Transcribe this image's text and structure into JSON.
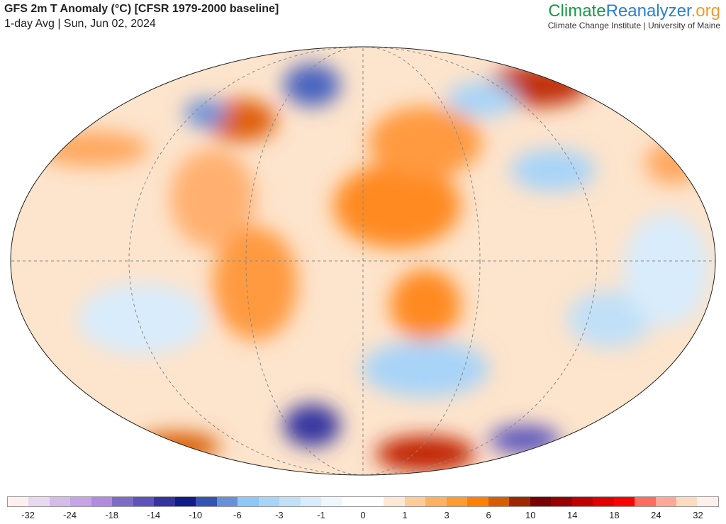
{
  "header": {
    "title": "GFS 2m T Anomaly (°C) [CFSR 1979-2000 baseline]",
    "subtitle": "1-day Avg | Sun, Jun 02, 2024"
  },
  "brand": {
    "part1": "Climate",
    "part2": "Reanalyzer",
    "part3": ".org",
    "subtitle": "Climate Change Institute | University of Maine"
  },
  "colorbar": {
    "colors": [
      "#fff0f0",
      "#e8d8f0",
      "#d4bce8",
      "#c4a4e4",
      "#b08ce0",
      "#7c6cc8",
      "#5c54bc",
      "#3434a0",
      "#101c88",
      "#3454b4",
      "#6890d8",
      "#8cc8f8",
      "#a8d4f8",
      "#c0e0f8",
      "#d8ecfc",
      "#eef6fe",
      "#ffffff",
      "#ffffff",
      "#ffe8d4",
      "#ffcc98",
      "#ffb060",
      "#ff9c30",
      "#ff8000",
      "#d85c00",
      "#a02800",
      "#780000",
      "#980000",
      "#c00000",
      "#e00000",
      "#ff0000",
      "#ff6c5c",
      "#ffa898",
      "#ffdcc0",
      "#fff0ec"
    ],
    "labels": [
      "-32",
      "-24",
      "-18",
      "-14",
      "-10",
      "-6",
      "-3",
      "-1",
      "0",
      "1",
      "3",
      "6",
      "10",
      "14",
      "18",
      "24",
      "32"
    ]
  }
}
